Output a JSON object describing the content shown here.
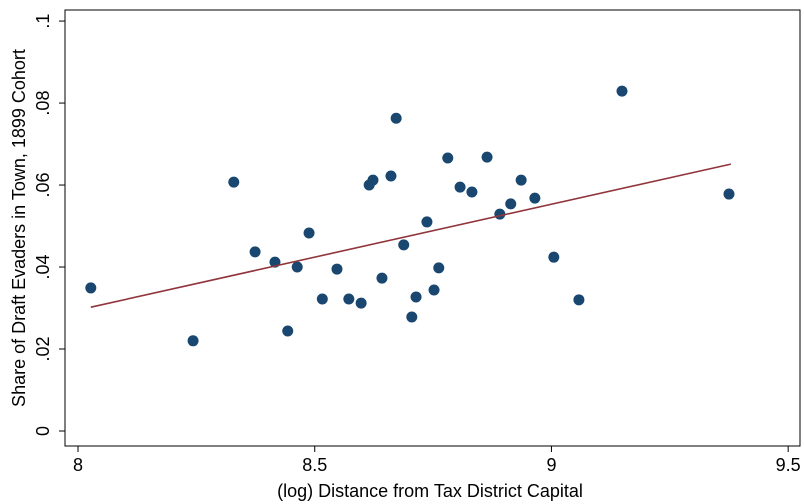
{
  "chart_data": {
    "type": "scatter",
    "xlabel": "(log) Distance from Tax District Capital",
    "ylabel": "Share of Draft Evaders in Town, 1899 Cohort",
    "x": [
      8.027,
      8.243,
      8.329,
      8.374,
      8.416,
      8.443,
      8.463,
      8.488,
      8.516,
      8.547,
      8.572,
      8.598,
      8.615,
      8.623,
      8.642,
      8.661,
      8.672,
      8.688,
      8.705,
      8.714,
      8.737,
      8.752,
      8.762,
      8.781,
      8.807,
      8.832,
      8.864,
      8.891,
      8.914,
      8.936,
      8.965,
      9.005,
      9.058,
      9.149,
      9.375
    ],
    "values": [
      0.0349,
      0.022,
      0.0607,
      0.0437,
      0.0412,
      0.0244,
      0.04,
      0.0483,
      0.0322,
      0.0395,
      0.0322,
      0.0312,
      0.06,
      0.0612,
      0.0373,
      0.0622,
      0.0763,
      0.0454,
      0.0278,
      0.0327,
      0.051,
      0.0344,
      0.0398,
      0.0666,
      0.0595,
      0.0583,
      0.0668,
      0.0529,
      0.0554,
      0.0612,
      0.0568,
      0.0424,
      0.032,
      0.0829,
      0.0578
    ],
    "color": "#1a476f",
    "fit_line": {
      "x": [
        8.027,
        9.379
      ],
      "y": [
        0.0302,
        0.0651
      ],
      "color": "#90353b"
    },
    "xlim": [
      7.9725,
      9.525
    ],
    "xticks": [
      8,
      8.5,
      9,
      9.5
    ],
    "ylim": [
      -0.00366,
      0.1027
    ],
    "yticks": [
      0,
      {
        "value": 0.02,
        "label": ".02"
      },
      {
        "value": 0.04,
        "label": ".04"
      },
      {
        "value": 0.06,
        "label": ".06"
      },
      {
        "value": 0.08,
        "label": ".08"
      },
      {
        "value": 0.1,
        "label": ".1"
      }
    ]
  }
}
